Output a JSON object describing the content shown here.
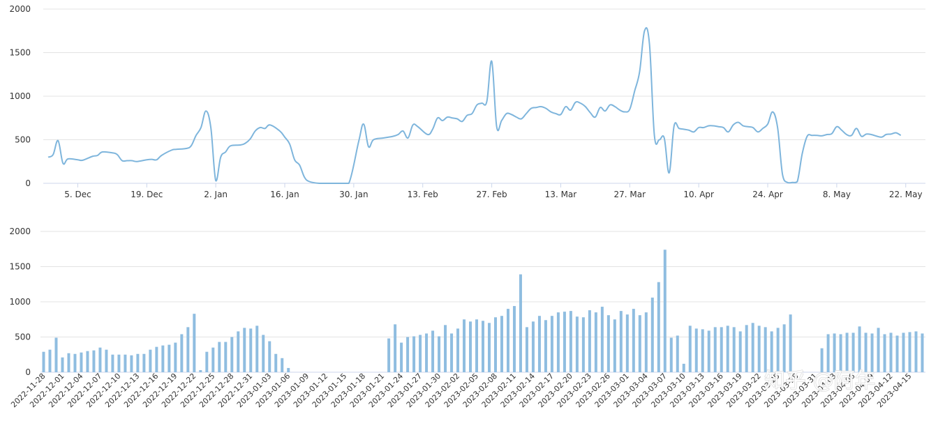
{
  "colors": {
    "line": "#7eb5dc",
    "bar": "#8fbde0",
    "grid": "#e3e3e3"
  },
  "watermark": "知乎 @阿年",
  "chart_data": [
    {
      "type": "line",
      "ylim": [
        0,
        2000
      ],
      "yticks": [
        0,
        500,
        1000,
        1500,
        2000
      ],
      "xlim": [
        "2022-11-28",
        "2023-05-26"
      ],
      "xtick_labels": [
        {
          "date": "2022-12-05",
          "label": "5. Dec"
        },
        {
          "date": "2022-12-19",
          "label": "19. Dec"
        },
        {
          "date": "2023-01-02",
          "label": "2. Jan"
        },
        {
          "date": "2023-01-16",
          "label": "16. Jan"
        },
        {
          "date": "2023-01-30",
          "label": "30. Jan"
        },
        {
          "date": "2023-02-13",
          "label": "13. Feb"
        },
        {
          "date": "2023-02-27",
          "label": "27. Feb"
        },
        {
          "date": "2023-03-13",
          "label": "13. Mar"
        },
        {
          "date": "2023-03-27",
          "label": "27. Mar"
        },
        {
          "date": "2023-04-10",
          "label": "10. Apr"
        },
        {
          "date": "2023-04-24",
          "label": "24. Apr"
        },
        {
          "date": "2023-05-08",
          "label": "8. May"
        },
        {
          "date": "2023-05-22",
          "label": "22. May"
        }
      ],
      "series": [
        {
          "points": [
            [
              "2022-11-29",
              300
            ],
            [
              "2022-11-30",
              330
            ],
            [
              "2022-12-01",
              490
            ],
            [
              "2022-12-02",
              230
            ],
            [
              "2022-12-03",
              280
            ],
            [
              "2022-12-05",
              270
            ],
            [
              "2022-12-06",
              265
            ],
            [
              "2022-12-08",
              310
            ],
            [
              "2022-12-09",
              320
            ],
            [
              "2022-12-10",
              360
            ],
            [
              "2022-12-12",
              350
            ],
            [
              "2022-12-13",
              330
            ],
            [
              "2022-12-14",
              260
            ],
            [
              "2022-12-15",
              260
            ],
            [
              "2022-12-16",
              260
            ],
            [
              "2022-12-17",
              250
            ],
            [
              "2022-12-19",
              270
            ],
            [
              "2022-12-20",
              275
            ],
            [
              "2022-12-21",
              270
            ],
            [
              "2022-12-22",
              320
            ],
            [
              "2022-12-24",
              380
            ],
            [
              "2022-12-25",
              390
            ],
            [
              "2022-12-27",
              400
            ],
            [
              "2022-12-28",
              430
            ],
            [
              "2022-12-29",
              550
            ],
            [
              "2022-12-30",
              640
            ],
            [
              "2022-12-31",
              830
            ],
            [
              "2023-01-01",
              640
            ],
            [
              "2023-01-02",
              30
            ],
            [
              "2023-01-03",
              300
            ],
            [
              "2023-01-04",
              360
            ],
            [
              "2023-01-05",
              430
            ],
            [
              "2023-01-07",
              440
            ],
            [
              "2023-01-08",
              460
            ],
            [
              "2023-01-09",
              510
            ],
            [
              "2023-01-10",
              600
            ],
            [
              "2023-01-11",
              640
            ],
            [
              "2023-01-12",
              630
            ],
            [
              "2023-01-13",
              670
            ],
            [
              "2023-01-15",
              600
            ],
            [
              "2023-01-16",
              530
            ],
            [
              "2023-01-17",
              450
            ],
            [
              "2023-01-18",
              270
            ],
            [
              "2023-01-19",
              210
            ],
            [
              "2023-01-20",
              70
            ],
            [
              "2023-01-21",
              20
            ],
            [
              "2023-01-23",
              0
            ],
            [
              "2023-01-25",
              0
            ],
            [
              "2023-01-27",
              0
            ],
            [
              "2023-01-29",
              0
            ],
            [
              "2023-01-31",
              480
            ],
            [
              "2023-02-01",
              680
            ],
            [
              "2023-02-02",
              420
            ],
            [
              "2023-02-03",
              500
            ],
            [
              "2023-02-05",
              520
            ],
            [
              "2023-02-07",
              540
            ],
            [
              "2023-02-08",
              560
            ],
            [
              "2023-02-09",
              600
            ],
            [
              "2023-02-10",
              520
            ],
            [
              "2023-02-11",
              670
            ],
            [
              "2023-02-12",
              650
            ],
            [
              "2023-02-14",
              560
            ],
            [
              "2023-02-15",
              620
            ],
            [
              "2023-02-16",
              750
            ],
            [
              "2023-02-17",
              720
            ],
            [
              "2023-02-18",
              760
            ],
            [
              "2023-02-19",
              750
            ],
            [
              "2023-02-20",
              740
            ],
            [
              "2023-02-21",
              710
            ],
            [
              "2023-02-22",
              780
            ],
            [
              "2023-02-23",
              800
            ],
            [
              "2023-02-24",
              900
            ],
            [
              "2023-02-25",
              920
            ],
            [
              "2023-02-26",
              940
            ],
            [
              "2023-02-27",
              1400
            ],
            [
              "2023-02-28",
              650
            ],
            [
              "2023-03-01",
              720
            ],
            [
              "2023-03-02",
              800
            ],
            [
              "2023-03-03",
              790
            ],
            [
              "2023-03-04",
              760
            ],
            [
              "2023-03-05",
              740
            ],
            [
              "2023-03-06",
              800
            ],
            [
              "2023-03-07",
              860
            ],
            [
              "2023-03-08",
              870
            ],
            [
              "2023-03-09",
              880
            ],
            [
              "2023-03-10",
              860
            ],
            [
              "2023-03-11",
              820
            ],
            [
              "2023-03-12",
              800
            ],
            [
              "2023-03-13",
              790
            ],
            [
              "2023-03-14",
              880
            ],
            [
              "2023-03-15",
              840
            ],
            [
              "2023-03-16",
              930
            ],
            [
              "2023-03-17",
              920
            ],
            [
              "2023-03-18",
              880
            ],
            [
              "2023-03-19",
              810
            ],
            [
              "2023-03-20",
              760
            ],
            [
              "2023-03-21",
              870
            ],
            [
              "2023-03-22",
              830
            ],
            [
              "2023-03-23",
              900
            ],
            [
              "2023-03-24",
              880
            ],
            [
              "2023-03-25",
              840
            ],
            [
              "2023-03-26",
              820
            ],
            [
              "2023-03-27",
              850
            ],
            [
              "2023-03-28",
              1060
            ],
            [
              "2023-03-29",
              1280
            ],
            [
              "2023-03-30",
              1750
            ],
            [
              "2023-03-31",
              1600
            ],
            [
              "2023-04-01",
              550
            ],
            [
              "2023-04-02",
              500
            ],
            [
              "2023-04-03",
              520
            ],
            [
              "2023-04-04",
              120
            ],
            [
              "2023-04-05",
              660
            ],
            [
              "2023-04-06",
              630
            ],
            [
              "2023-04-07",
              620
            ],
            [
              "2023-04-08",
              610
            ],
            [
              "2023-04-09",
              590
            ],
            [
              "2023-04-10",
              640
            ],
            [
              "2023-04-11",
              640
            ],
            [
              "2023-04-12",
              660
            ],
            [
              "2023-04-13",
              660
            ],
            [
              "2023-04-14",
              650
            ],
            [
              "2023-04-15",
              640
            ],
            [
              "2023-04-16",
              590
            ],
            [
              "2023-04-17",
              670
            ],
            [
              "2023-04-18",
              700
            ],
            [
              "2023-04-19",
              660
            ],
            [
              "2023-04-20",
              650
            ],
            [
              "2023-04-21",
              640
            ],
            [
              "2023-04-22",
              590
            ],
            [
              "2023-04-23",
              630
            ],
            [
              "2023-04-24",
              680
            ],
            [
              "2023-04-25",
              820
            ],
            [
              "2023-04-26",
              640
            ],
            [
              "2023-04-27",
              100
            ],
            [
              "2023-04-28",
              10
            ],
            [
              "2023-04-29",
              10
            ],
            [
              "2023-04-30",
              20
            ],
            [
              "2023-05-01",
              340
            ],
            [
              "2023-05-02",
              540
            ],
            [
              "2023-05-03",
              550
            ],
            [
              "2023-05-04",
              550
            ],
            [
              "2023-05-05",
              545
            ],
            [
              "2023-05-06",
              560
            ],
            [
              "2023-05-07",
              570
            ],
            [
              "2023-05-08",
              650
            ],
            [
              "2023-05-09",
              610
            ],
            [
              "2023-05-10",
              560
            ],
            [
              "2023-05-11",
              550
            ],
            [
              "2023-05-12",
              630
            ],
            [
              "2023-05-13",
              540
            ],
            [
              "2023-05-14",
              565
            ],
            [
              "2023-05-15",
              560
            ],
            [
              "2023-05-17",
              530
            ],
            [
              "2023-05-18",
              560
            ],
            [
              "2023-05-19",
              565
            ],
            [
              "2023-05-20",
              580
            ],
            [
              "2023-05-21",
              550
            ]
          ]
        }
      ]
    },
    {
      "type": "bar",
      "ylim": [
        0,
        2000
      ],
      "yticks": [
        0,
        500,
        1000,
        1500,
        2000
      ],
      "categories_start": "2022-11-28",
      "categories_end": "2023-05-26",
      "category_label_step": 3,
      "values": [
        290,
        320,
        490,
        210,
        270,
        260,
        280,
        300,
        310,
        350,
        320,
        250,
        250,
        250,
        240,
        260,
        260,
        320,
        360,
        380,
        390,
        420,
        540,
        640,
        830,
        30,
        290,
        350,
        430,
        430,
        500,
        580,
        630,
        620,
        660,
        530,
        440,
        260,
        200,
        60,
        0,
        0,
        0,
        0,
        0,
        0,
        0,
        0,
        0,
        0,
        0,
        0,
        0,
        0,
        0,
        480,
        680,
        420,
        500,
        510,
        530,
        550,
        590,
        510,
        670,
        550,
        620,
        750,
        720,
        750,
        730,
        700,
        780,
        800,
        900,
        940,
        1390,
        640,
        720,
        800,
        740,
        800,
        850,
        860,
        870,
        790,
        780,
        880,
        850,
        930,
        810,
        750,
        870,
        820,
        900,
        810,
        850,
        1060,
        1280,
        1740,
        490,
        520,
        120,
        660,
        620,
        610,
        590,
        640,
        640,
        660,
        640,
        580,
        670,
        700,
        660,
        640,
        580,
        630,
        680,
        820,
        0,
        0,
        0,
        0,
        340,
        540,
        550,
        540,
        560,
        560,
        650,
        560,
        550,
        630,
        540,
        560,
        520,
        560,
        570,
        580,
        550
      ]
    }
  ]
}
